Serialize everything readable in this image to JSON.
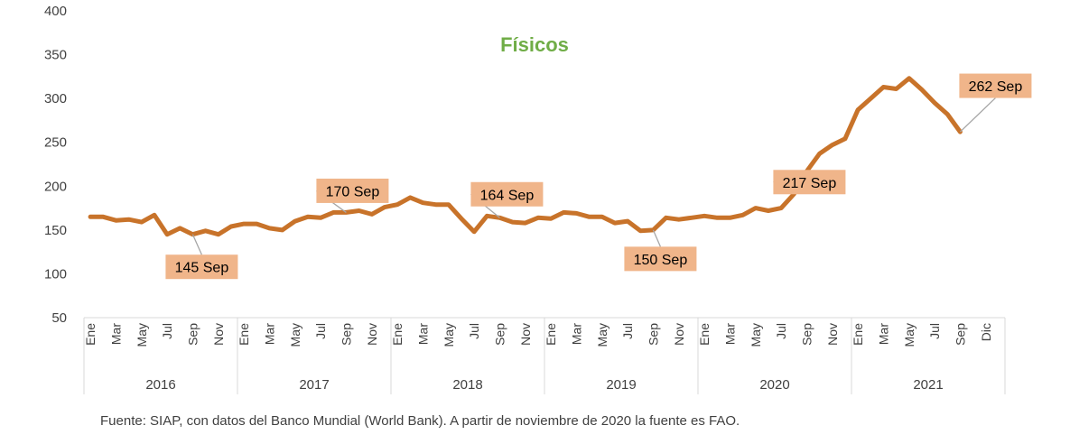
{
  "chart_data": {
    "type": "line",
    "title": "Físicos",
    "ylim": [
      50,
      400
    ],
    "yticks": [
      50,
      100,
      150,
      200,
      250,
      300,
      350,
      400
    ],
    "month_labels": [
      "Ene",
      "Mar",
      "May",
      "Jul",
      "Sep",
      "Nov"
    ],
    "month_labels_last_year": [
      "Ene",
      "Mar",
      "May",
      "Jul",
      "Sep",
      "Dic"
    ],
    "years": [
      "2016",
      "2017",
      "2018",
      "2019",
      "2020",
      "2021"
    ],
    "series": [
      {
        "color": "#c8732a",
        "values": [
          165,
          165,
          161,
          162,
          159,
          167,
          145,
          152,
          145,
          149,
          145,
          154,
          157,
          157,
          152,
          150,
          160,
          165,
          164,
          170,
          170,
          172,
          168,
          176,
          179,
          187,
          181,
          179,
          179,
          163,
          148,
          166,
          164,
          159,
          158,
          164,
          163,
          170,
          169,
          165,
          165,
          158,
          160,
          149,
          150,
          164,
          162,
          164,
          166,
          164,
          164,
          167,
          175,
          172,
          175,
          191,
          217,
          237,
          247,
          254,
          287,
          300,
          313,
          311,
          323,
          310,
          295,
          282,
          262
        ]
      }
    ],
    "annotations": [
      {
        "label": "145 Sep",
        "index": 8,
        "value": 145
      },
      {
        "label": "170 Sep",
        "index": 20,
        "value": 170
      },
      {
        "label": "164 Sep",
        "index": 32,
        "value": 164
      },
      {
        "label": "150 Sep",
        "index": 44,
        "value": 150
      },
      {
        "label": "217 Sep",
        "index": 56,
        "value": 217
      },
      {
        "label": "262 Sep",
        "index": 68,
        "value": 262
      }
    ]
  },
  "colors": {
    "line": "#c8732a",
    "label_box": "#f0b58a",
    "title": "#70ad47",
    "axis": "#d9d9d9",
    "leader": "#a6a6a6"
  },
  "source_note": "Fuente: SIAP, con datos del Banco Mundial (World Bank). A partir de noviembre de 2020 la fuente es FAO."
}
